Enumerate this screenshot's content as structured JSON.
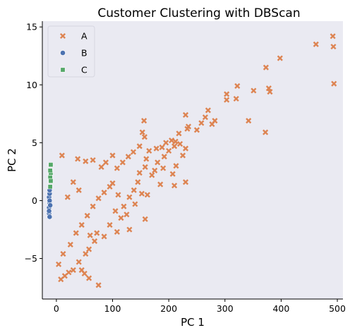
{
  "chart_data": {
    "type": "scatter",
    "title": "Customer Clustering with DBScan",
    "xlabel": "PC 1",
    "ylabel": "PC 2",
    "xlim": [
      -25,
      510
    ],
    "ylim": [
      -8.5,
      15.5
    ],
    "xticks": [
      0,
      100,
      200,
      300,
      400,
      500
    ],
    "yticks": [
      -5,
      0,
      5,
      10,
      15
    ],
    "xtick_labels": [
      "0",
      "100",
      "200",
      "300",
      "400",
      "500"
    ],
    "ytick_labels": [
      "−5",
      "0",
      "5",
      "10",
      "15"
    ],
    "grid": false,
    "legend_position": "top-left",
    "series": [
      {
        "name": "A",
        "marker": "x",
        "color": "#dd8452",
        "points": [
          [
            492,
            14.2
          ],
          [
            493,
            13.3
          ],
          [
            462,
            13.5
          ],
          [
            494,
            10.1
          ],
          [
            398,
            12.3
          ],
          [
            373,
            11.5
          ],
          [
            378,
            9.7
          ],
          [
            380,
            9.4
          ],
          [
            351,
            9.5
          ],
          [
            322,
            9.9
          ],
          [
            303,
            9.2
          ],
          [
            303,
            8.7
          ],
          [
            320,
            8.8
          ],
          [
            342,
            6.9
          ],
          [
            372,
            5.9
          ],
          [
            270,
            7.8
          ],
          [
            265,
            7.2
          ],
          [
            282,
            6.9
          ],
          [
            277,
            6.6
          ],
          [
            258,
            6.7
          ],
          [
            230,
            7.4
          ],
          [
            235,
            6.4
          ],
          [
            233,
            6.2
          ],
          [
            218,
            5.8
          ],
          [
            250,
            6.1
          ],
          [
            212,
            5.1
          ],
          [
            205,
            5.2
          ],
          [
            220,
            4.9
          ],
          [
            230,
            4.5
          ],
          [
            195,
            5.0
          ],
          [
            200,
            4.3
          ],
          [
            210,
            4.7
          ],
          [
            225,
            3.9
          ],
          [
            213,
            3.0
          ],
          [
            188,
            4.6
          ],
          [
            192,
            3.8
          ],
          [
            156,
            6.9
          ],
          [
            153,
            5.9
          ],
          [
            157,
            5.5
          ],
          [
            148,
            4.7
          ],
          [
            165,
            4.3
          ],
          [
            178,
            4.5
          ],
          [
            180,
            3.3
          ],
          [
            175,
            2.6
          ],
          [
            170,
            2.2
          ],
          [
            160,
            3.6
          ],
          [
            158,
            2.9
          ],
          [
            148,
            2.4
          ],
          [
            190,
            2.8
          ],
          [
            185,
            1.4
          ],
          [
            207,
            2.3
          ],
          [
            230,
            1.6
          ],
          [
            210,
            1.3
          ],
          [
            145,
            1.6
          ],
          [
            138,
            0.9
          ],
          [
            130,
            0.3
          ],
          [
            140,
            -0.3
          ],
          [
            152,
            0.6
          ],
          [
            162,
            0.5
          ],
          [
            158,
            -1.6
          ],
          [
            130,
            -2.5
          ],
          [
            125,
            -1.2
          ],
          [
            115,
            -1.5
          ],
          [
            120,
            -0.5
          ],
          [
            105,
            -0.9
          ],
          [
            110,
            0.5
          ],
          [
            100,
            1.5
          ],
          [
            108,
            2.8
          ],
          [
            118,
            3.3
          ],
          [
            128,
            3.8
          ],
          [
            137,
            4.2
          ],
          [
            100,
            3.9
          ],
          [
            88,
            3.3
          ],
          [
            80,
            2.9
          ],
          [
            65,
            3.5
          ],
          [
            52,
            3.4
          ],
          [
            38,
            3.6
          ],
          [
            10,
            3.9
          ],
          [
            108,
            -2.7
          ],
          [
            95,
            -2.1
          ],
          [
            85,
            -3.1
          ],
          [
            72,
            -2.8
          ],
          [
            68,
            -3.5
          ],
          [
            60,
            -3.0
          ],
          [
            58,
            -4.2
          ],
          [
            52,
            -4.6
          ],
          [
            40,
            -5.3
          ],
          [
            45,
            -6.0
          ],
          [
            50,
            -6.3
          ],
          [
            58,
            -6.7
          ],
          [
            75,
            -7.3
          ],
          [
            30,
            -6.0
          ],
          [
            22,
            -6.2
          ],
          [
            15,
            -6.5
          ],
          [
            8,
            -6.8
          ],
          [
            4,
            -5.5
          ],
          [
            12,
            -4.6
          ],
          [
            25,
            -3.8
          ],
          [
            35,
            -2.8
          ],
          [
            45,
            -2.1
          ],
          [
            55,
            -1.3
          ],
          [
            65,
            -0.5
          ],
          [
            75,
            0.2
          ],
          [
            85,
            0.7
          ],
          [
            95,
            1.2
          ],
          [
            30,
            1.6
          ],
          [
            40,
            0.9
          ],
          [
            20,
            0.3
          ]
        ]
      },
      {
        "name": "B",
        "marker": "circle",
        "color": "#4c72b0",
        "points": [
          [
            -13,
            0.3
          ],
          [
            -12,
            -0.2
          ],
          [
            -13,
            -0.6
          ],
          [
            -12,
            0.6
          ],
          [
            -13,
            -1.1
          ],
          [
            -12,
            0.0
          ],
          [
            -11,
            -0.4
          ],
          [
            -12,
            0.9
          ],
          [
            -13,
            -0.9
          ],
          [
            -12,
            -1.4
          ]
        ]
      },
      {
        "name": "C",
        "marker": "square",
        "color": "#55a868",
        "points": [
          [
            -10,
            2.4
          ],
          [
            -11,
            2.0
          ],
          [
            -10,
            1.7
          ],
          [
            -11,
            2.6
          ],
          [
            -10,
            3.1
          ],
          [
            -11,
            1.2
          ]
        ]
      }
    ]
  }
}
